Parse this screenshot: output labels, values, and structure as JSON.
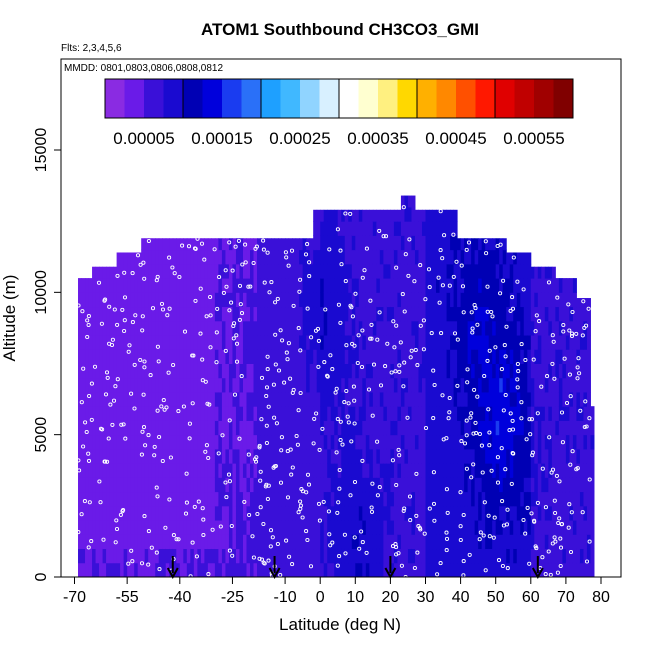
{
  "chart_data": {
    "type": "heatmap",
    "title": "ATOM1 Southbound CH3CO3_GMI",
    "subtitle": "Flts: 2,3,4,5,6",
    "annotation": "MMDD: 0801,0803,0806,0808,0812",
    "xlabel": "Latitude (deg N)",
    "ylabel": "Altitude (m)",
    "xlim": [
      -70,
      80
    ],
    "ylim": [
      0,
      18000
    ],
    "x_ticks": [
      -70,
      -55,
      -40,
      -25,
      -10,
      0,
      10,
      20,
      30,
      40,
      50,
      60,
      70,
      80
    ],
    "x_tick_labels": [
      "-70",
      "-55",
      "-40",
      "-25",
      "-10",
      "0",
      "10",
      "20",
      "30",
      "40",
      "50",
      "60",
      "70",
      "80"
    ],
    "y_ticks": [
      0,
      5000,
      10000,
      15000
    ],
    "y_tick_labels": [
      "0",
      "5000",
      "10000",
      "15000"
    ],
    "colorbar": {
      "min": 0,
      "max": 0.0006,
      "tick_values": [
        5e-05,
        0.00015,
        0.00025,
        0.00035,
        0.00045,
        0.00055
      ],
      "tick_labels": [
        "0.00005",
        "0.00015",
        "0.00025",
        "0.00035",
        "0.00045",
        "0.00055"
      ],
      "colors": [
        "#8a2be2",
        "#6a1be8",
        "#3a10d8",
        "#1a0ad0",
        "#0000b4",
        "#0000dc",
        "#1a3cf0",
        "#2a70f8",
        "#1ea0ff",
        "#40b8ff",
        "#90d4ff",
        "#d8f0ff",
        "#ffffff",
        "#ffffd0",
        "#fff080",
        "#ffd800",
        "#ffb000",
        "#ff8800",
        "#ff5000",
        "#ff1800",
        "#e00000",
        "#c00000",
        "#a00000",
        "#800000"
      ]
    },
    "column_tops": [
      {
        "lat": -68.5,
        "top": 10500
      },
      {
        "lat": -61.5,
        "top": 10900
      },
      {
        "lat": -54.5,
        "top": 11400
      },
      {
        "lat": -47.5,
        "top": 11900
      },
      {
        "lat": -40.5,
        "top": 11900
      },
      {
        "lat": -33.5,
        "top": 11900
      },
      {
        "lat": -26.5,
        "top": 11900
      },
      {
        "lat": -19.5,
        "top": 11900
      },
      {
        "lat": -12.5,
        "top": 11900
      },
      {
        "lat": -5.5,
        "top": 11900
      },
      {
        "lat": 1.5,
        "top": 12900
      },
      {
        "lat": 8.5,
        "top": 12900
      },
      {
        "lat": 15.5,
        "top": 12900
      },
      {
        "lat": 21.5,
        "top": 12900
      },
      {
        "lat": 25.0,
        "top": 13400
      },
      {
        "lat": 29.5,
        "top": 12900
      },
      {
        "lat": 35.5,
        "top": 12900
      },
      {
        "lat": 42.5,
        "top": 11900
      },
      {
        "lat": 49.5,
        "top": 11900
      },
      {
        "lat": 56.5,
        "top": 11400
      },
      {
        "lat": 63.5,
        "top": 10900
      },
      {
        "lat": 70.5,
        "top": 10500
      },
      {
        "lat": 75.5,
        "top": 9800
      },
      {
        "lat": 77.5,
        "top": 6000
      }
    ],
    "background_fields": [
      {
        "lat_range": [
          -70,
          -44
        ],
        "value": 3e-05
      },
      {
        "lat_range": [
          -44,
          -30
        ],
        "value": 4e-05
      },
      {
        "lat_range": [
          -30,
          -18
        ],
        "value": 5e-05
      },
      {
        "lat_range": [
          -18,
          0
        ],
        "value": 6e-05
      },
      {
        "lat_range": [
          0,
          30
        ],
        "value": 7e-05
      },
      {
        "lat_range": [
          30,
          60
        ],
        "value": 9e-05
      },
      {
        "lat_range": [
          60,
          80
        ],
        "value": 7e-05
      }
    ],
    "enhanced_regions": [
      {
        "lat": 52,
        "alt": 5500,
        "value": 0.00014
      },
      {
        "lat": 45,
        "alt": 9000,
        "value": 0.00012
      },
      {
        "lat": 10,
        "alt": 1000,
        "value": 0.0001
      },
      {
        "lat": 0,
        "alt": 9500,
        "value": 0.0001
      }
    ],
    "arrows_lat": [
      -42,
      -13,
      20,
      62
    ],
    "marker_color": "#ffffff"
  }
}
